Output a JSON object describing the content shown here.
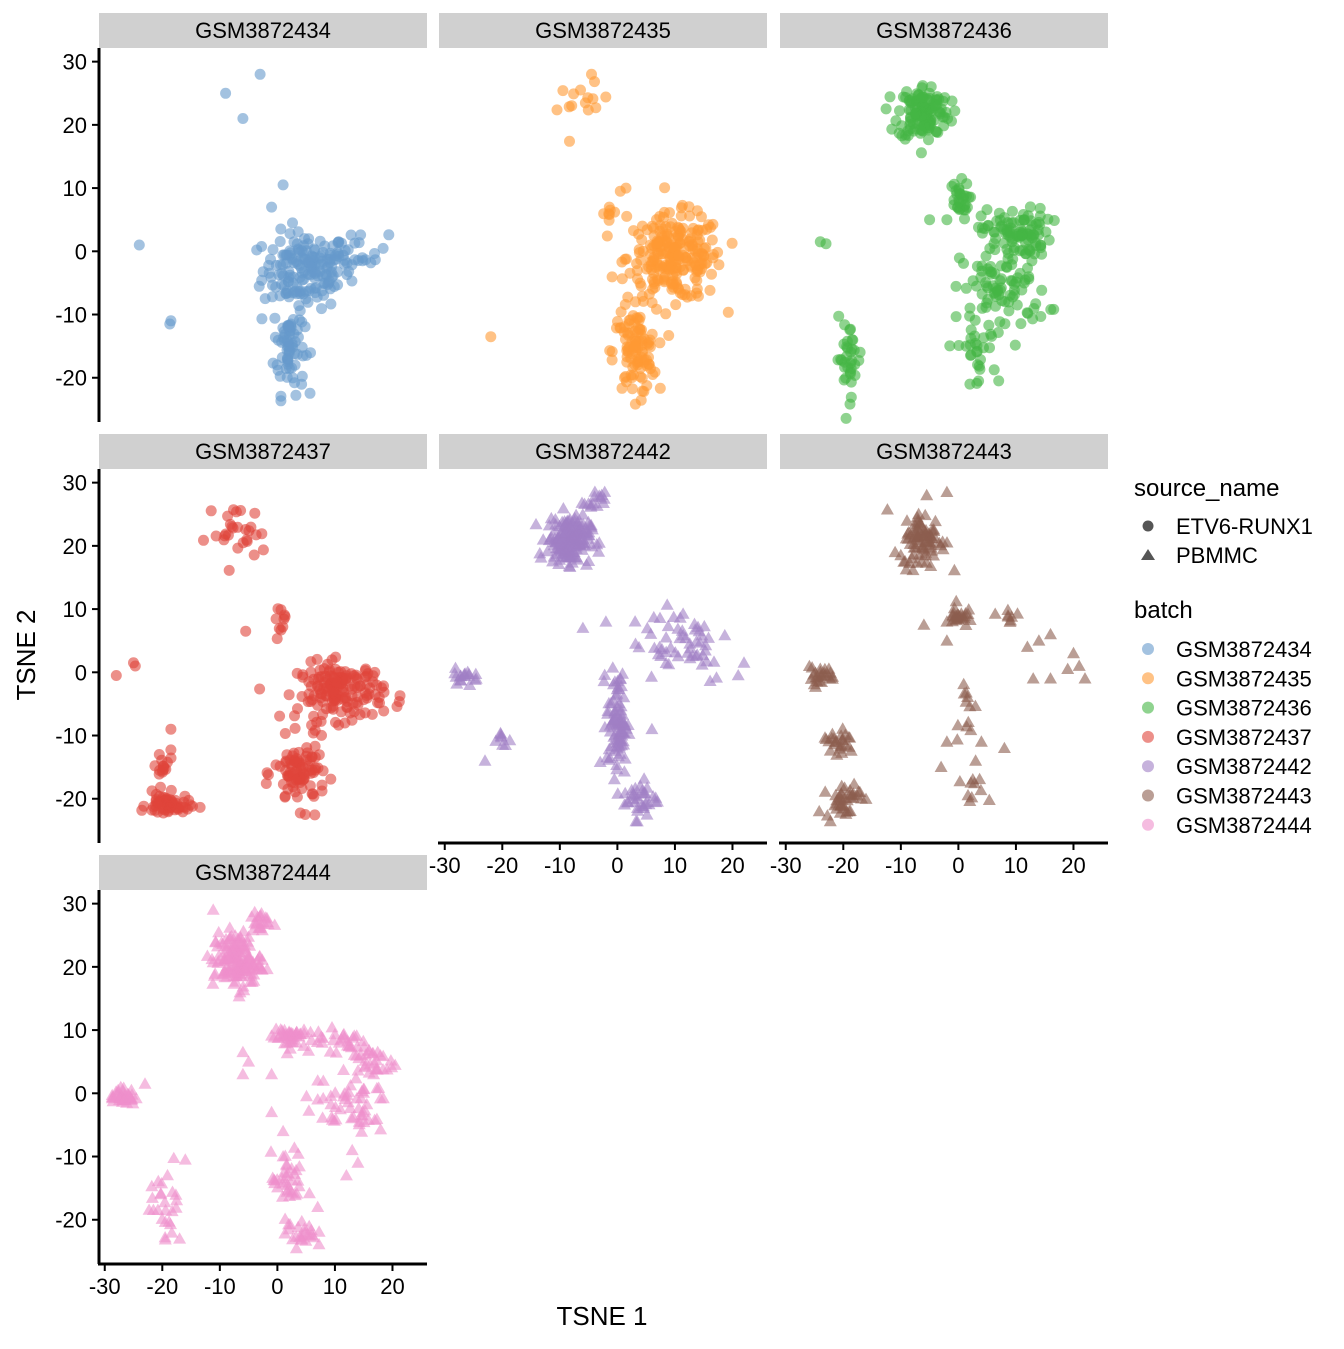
{
  "chart_data": {
    "type": "scatter",
    "xlabel": "TSNE 1",
    "ylabel": "TSNE 2",
    "xlim": [
      -31,
      26
    ],
    "ylim": [
      -27,
      32
    ],
    "x_ticks": [
      -30,
      -20,
      -10,
      0,
      10,
      20
    ],
    "y_ticks": [
      30,
      20,
      10,
      0,
      -10,
      -20
    ],
    "x_tick_labels": [
      "-30",
      "-20",
      "-10",
      "0",
      "10",
      "20"
    ],
    "y_tick_labels": [
      "30",
      "20",
      "10",
      "0",
      "-10",
      "-20"
    ],
    "legend": {
      "placement": "right",
      "shape_title": "source_name",
      "shape_entries": [
        {
          "label": "ETV6-RUNX1",
          "shape": "circle"
        },
        {
          "label": "PBMMC",
          "shape": "triangle"
        }
      ],
      "color_title": "batch",
      "color_entries": [
        {
          "label": "GSM3872434",
          "color": "#6699CC"
        },
        {
          "label": "GSM3872435",
          "color": "#FF9933"
        },
        {
          "label": "GSM3872436",
          "color": "#44B544"
        },
        {
          "label": "GSM3872437",
          "color": "#E0453A"
        },
        {
          "label": "GSM3872442",
          "color": "#A07FC4"
        },
        {
          "label": "GSM3872443",
          "color": "#8C5E4E"
        },
        {
          "label": "GSM3872444",
          "color": "#EE8FCB"
        }
      ]
    },
    "panels": [
      {
        "title": "GSM3872434",
        "color": "#6699CC",
        "shape": "circle",
        "clusters": [
          {
            "cx": 5,
            "cy": -3,
            "sx": 5,
            "sy": 4,
            "n": 160
          },
          {
            "cx": 2,
            "cy": -15,
            "sx": 1.8,
            "sy": 5,
            "n": 70
          },
          {
            "cx": 14,
            "cy": 0,
            "sx": 3.5,
            "sy": 2,
            "n": 25
          }
        ],
        "points": [
          [
            -3,
            28
          ],
          [
            -9,
            25
          ],
          [
            -6,
            21
          ],
          [
            1,
            10.5
          ],
          [
            -1,
            7
          ],
          [
            -24,
            1
          ],
          [
            -18.5,
            -11
          ],
          [
            -18.7,
            -11.5
          ]
        ]
      },
      {
        "title": "GSM3872435",
        "color": "#FF9933",
        "shape": "circle",
        "clusters": [
          {
            "cx": -6,
            "cy": 23,
            "sx": 3,
            "sy": 2.2,
            "n": 14
          },
          {
            "cx": 10,
            "cy": -1,
            "sx": 5.5,
            "sy": 4.5,
            "n": 240
          },
          {
            "cx": 3,
            "cy": -16,
            "sx": 2.5,
            "sy": 4.5,
            "n": 100
          },
          {
            "cx": -1,
            "cy": 6,
            "sx": 2,
            "sy": 1.5,
            "n": 8
          }
        ],
        "points": [
          [
            -22,
            -13.5
          ],
          [
            -4.5,
            28
          ],
          [
            0.5,
            9.5
          ],
          [
            1.5,
            10
          ]
        ]
      },
      {
        "title": "GSM3872436",
        "color": "#44B544",
        "shape": "circle",
        "clusters": [
          {
            "cx": -6,
            "cy": 22,
            "sx": 3,
            "sy": 3,
            "n": 130
          },
          {
            "cx": 0,
            "cy": 8,
            "sx": 1.2,
            "sy": 2,
            "n": 30
          },
          {
            "cx": 10,
            "cy": 3,
            "sx": 4,
            "sy": 2.5,
            "n": 90
          },
          {
            "cx": 8,
            "cy": -6,
            "sx": 5,
            "sy": 4.5,
            "n": 90
          },
          {
            "cx": 3,
            "cy": -16,
            "sx": 2,
            "sy": 3.5,
            "n": 25
          },
          {
            "cx": -19,
            "cy": -17,
            "sx": 1.5,
            "sy": 4,
            "n": 35
          }
        ],
        "points": [
          [
            -24,
            1.5
          ],
          [
            -23,
            1.2
          ],
          [
            -5,
            5
          ],
          [
            -2,
            5
          ],
          [
            2,
            -21
          ],
          [
            7,
            -20.5
          ]
        ]
      },
      {
        "title": "GSM3872437",
        "color": "#E0453A",
        "shape": "circle",
        "clusters": [
          {
            "cx": -7,
            "cy": 22,
            "sx": 3.5,
            "sy": 3,
            "n": 28
          },
          {
            "cx": 1,
            "cy": 8.5,
            "sx": 1,
            "sy": 1.5,
            "n": 10
          },
          {
            "cx": 11,
            "cy": -3,
            "sx": 5,
            "sy": 3,
            "n": 160
          },
          {
            "cx": 4,
            "cy": -16,
            "sx": 3,
            "sy": 3.5,
            "n": 90
          },
          {
            "cx": -20,
            "cy": -15,
            "sx": 1.2,
            "sy": 2,
            "n": 15
          },
          {
            "cx": -19,
            "cy": -21,
            "sx": 2.5,
            "sy": 1.2,
            "n": 60
          }
        ],
        "points": [
          [
            -5.5,
            6.5
          ],
          [
            -28,
            -0.5
          ],
          [
            -25,
            1.5
          ],
          [
            -24.7,
            1
          ],
          [
            -18.5,
            -9
          ]
        ]
      },
      {
        "title": "GSM3872442",
        "color": "#A07FC4",
        "shape": "triangle",
        "clusters": [
          {
            "cx": -8.5,
            "cy": 21,
            "sx": 2.5,
            "sy": 2.5,
            "n": 170
          },
          {
            "cx": -4,
            "cy": 27,
            "sx": 1.2,
            "sy": 1,
            "n": 15
          },
          {
            "cx": 0,
            "cy": -8,
            "sx": 1.2,
            "sy": 5.5,
            "n": 90
          },
          {
            "cx": 4,
            "cy": -20,
            "sx": 2,
            "sy": 2,
            "n": 35
          },
          {
            "cx": 11,
            "cy": 5,
            "sx": 6,
            "sy": 4.5,
            "n": 55
          },
          {
            "cx": -26,
            "cy": -0.5,
            "sx": 1.5,
            "sy": 0.8,
            "n": 18
          },
          {
            "cx": -20,
            "cy": -11,
            "sx": 1.2,
            "sy": 1.2,
            "n": 8
          }
        ],
        "points": [
          [
            -23,
            -14
          ],
          [
            -6,
            7
          ],
          [
            -2,
            8
          ],
          [
            21,
            -0.5
          ],
          [
            22,
            1.5
          ],
          [
            6,
            -9
          ]
        ]
      },
      {
        "title": "GSM3872443",
        "color": "#8C5E4E",
        "shape": "triangle",
        "clusters": [
          {
            "cx": -6,
            "cy": 21,
            "sx": 2.5,
            "sy": 3,
            "n": 80
          },
          {
            "cx": 0,
            "cy": 9,
            "sx": 1,
            "sy": 1.2,
            "n": 25
          },
          {
            "cx": 9,
            "cy": 9,
            "sx": 1.5,
            "sy": 0.8,
            "n": 8
          },
          {
            "cx": -24,
            "cy": -0.5,
            "sx": 1.8,
            "sy": 0.9,
            "n": 25
          },
          {
            "cx": -21,
            "cy": -11,
            "sx": 2,
            "sy": 1.8,
            "n": 25
          },
          {
            "cx": -20,
            "cy": -20,
            "sx": 2,
            "sy": 2,
            "n": 40
          },
          {
            "cx": 1,
            "cy": -5,
            "sx": 1.5,
            "sy": 2.5,
            "n": 12
          },
          {
            "cx": 3,
            "cy": -19,
            "sx": 1.5,
            "sy": 1.5,
            "n": 10
          }
        ],
        "points": [
          [
            -11,
            19
          ],
          [
            -10,
            18.5
          ],
          [
            -6,
            7.5
          ],
          [
            -2,
            5
          ],
          [
            -2,
            8
          ],
          [
            12,
            4
          ],
          [
            14,
            5
          ],
          [
            16,
            6
          ],
          [
            20,
            3
          ],
          [
            21,
            1
          ],
          [
            19,
            0.5
          ],
          [
            13,
            -1
          ],
          [
            16,
            -1
          ],
          [
            22,
            -1
          ],
          [
            -2,
            -11
          ],
          [
            4,
            -11
          ],
          [
            8,
            -12
          ],
          [
            -3,
            -15
          ],
          [
            3,
            -14
          ],
          [
            -5.5,
            28
          ],
          [
            -2,
            28.5
          ]
        ]
      },
      {
        "title": "GSM3872444",
        "color": "#EE8FCB",
        "shape": "triangle",
        "clusters": [
          {
            "cx": -7,
            "cy": 21,
            "sx": 2.8,
            "sy": 3,
            "n": 140
          },
          {
            "cx": -3,
            "cy": 27,
            "sx": 1.2,
            "sy": 1.2,
            "n": 20
          },
          {
            "cx": 2,
            "cy": 9,
            "sx": 2,
            "sy": 1.2,
            "n": 45
          },
          {
            "cx": 16,
            "cy": 5,
            "sx": 3,
            "sy": 2,
            "n": 30
          },
          {
            "cx": 11,
            "cy": 8.5,
            "sx": 3,
            "sy": 1.2,
            "n": 25
          },
          {
            "cx": 12,
            "cy": -2,
            "sx": 5,
            "sy": 3,
            "n": 50
          },
          {
            "cx": 2,
            "cy": -14,
            "sx": 2,
            "sy": 3,
            "n": 35
          },
          {
            "cx": 4,
            "cy": -22,
            "sx": 1.8,
            "sy": 1.5,
            "n": 25
          },
          {
            "cx": -27,
            "cy": -0.5,
            "sx": 1.5,
            "sy": 0.9,
            "n": 40
          },
          {
            "cx": -19,
            "cy": -17,
            "sx": 2,
            "sy": 4,
            "n": 25
          }
        ],
        "points": [
          [
            -23,
            1.5
          ],
          [
            -6,
            6.5
          ],
          [
            -5,
            5
          ],
          [
            -6,
            3
          ],
          [
            -1,
            3
          ],
          [
            -1,
            -3
          ],
          [
            1,
            -6
          ],
          [
            7,
            2
          ],
          [
            7,
            -1
          ],
          [
            13,
            -9
          ],
          [
            14,
            -11
          ],
          [
            12,
            -13
          ],
          [
            7,
            -18
          ],
          [
            -16,
            -10.5
          ],
          [
            -17,
            -23
          ],
          [
            1,
            -10
          ]
        ]
      }
    ]
  }
}
